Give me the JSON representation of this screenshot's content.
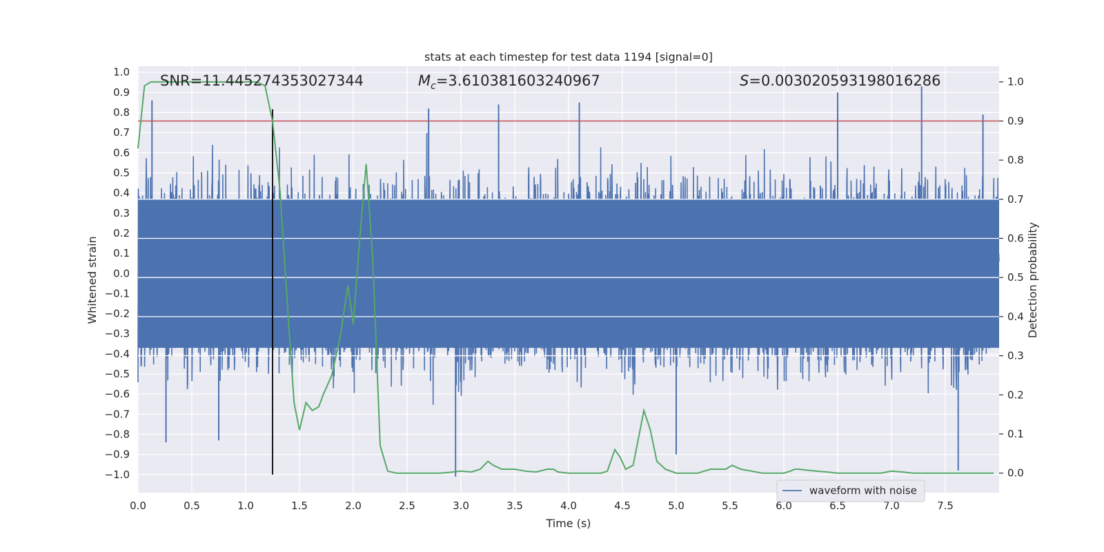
{
  "chart_data": {
    "type": "line",
    "title": "stats at each timestep for test data 1194 [signal=0]",
    "xlabel": "Time (s)",
    "ylabel_left": "Whitened strain",
    "ylabel_right": "Detection probability",
    "xlim": [
      0.0,
      8.0
    ],
    "ylim_left": [
      -1.09,
      1.03
    ],
    "ylim_right": [
      -0.05,
      1.04
    ],
    "x_ticks": [
      "0.0",
      "0.5",
      "1.0",
      "1.5",
      "2.0",
      "2.5",
      "3.0",
      "3.5",
      "4.0",
      "4.5",
      "5.0",
      "5.5",
      "6.0",
      "6.5",
      "7.0",
      "7.5"
    ],
    "x_tick_values": [
      0.0,
      0.5,
      1.0,
      1.5,
      2.0,
      2.5,
      3.0,
      3.5,
      4.0,
      4.5,
      5.0,
      5.5,
      6.0,
      6.5,
      7.0,
      7.5
    ],
    "y_left_ticks": [
      "1.0",
      "0.9",
      "0.8",
      "0.7",
      "0.6",
      "0.5",
      "0.4",
      "0.3",
      "0.2",
      "0.1",
      "0.0",
      "−0.1",
      "−0.2",
      "−0.3",
      "−0.4",
      "−0.5",
      "−0.6",
      "−0.7",
      "−0.8",
      "−0.9",
      "−1.0"
    ],
    "y_left_tick_values": [
      1.0,
      0.9,
      0.8,
      0.7,
      0.6,
      0.5,
      0.4,
      0.3,
      0.2,
      0.1,
      0.0,
      -0.1,
      -0.2,
      -0.3,
      -0.4,
      -0.5,
      -0.6,
      -0.7,
      -0.8,
      -0.9,
      -1.0
    ],
    "y_right_ticks": [
      "1.0",
      "0.9",
      "0.8",
      "0.7",
      "0.6",
      "0.5",
      "0.4",
      "0.3",
      "0.2",
      "0.1",
      "0.0"
    ],
    "y_right_tick_values": [
      1.0,
      0.9,
      0.8,
      0.7,
      0.6,
      0.5,
      0.4,
      0.3,
      0.2,
      0.1,
      0.0
    ],
    "annotations": {
      "snr": "SNR=11.445274353027344",
      "mc_symbol": "M",
      "mc_sub": "c",
      "mc_value": "=3.610381603240967",
      "s_symbol": "S",
      "s_value": "=0.003020593198016286"
    },
    "threshold": {
      "value": 0.9,
      "axis": "right",
      "color": "#c44e52"
    },
    "marker_line": {
      "x": 1.25,
      "y_range": [
        -1.0,
        0.93
      ],
      "color": "#000000"
    },
    "waveform": {
      "name": "waveform with noise",
      "color": "#4c72b0",
      "sample_rate": 2048,
      "typical_envelope": [
        -0.45,
        0.45
      ],
      "peak_spikes": [
        {
          "x": 0.13,
          "y": 0.86
        },
        {
          "x": 0.26,
          "y": -0.84
        },
        {
          "x": 0.75,
          "y": -0.83
        },
        {
          "x": 2.7,
          "y": 0.82
        },
        {
          "x": 2.95,
          "y": -1.01
        },
        {
          "x": 3.35,
          "y": 0.84
        },
        {
          "x": 4.1,
          "y": 0.85
        },
        {
          "x": 5.0,
          "y": -0.9
        },
        {
          "x": 6.5,
          "y": 0.9
        },
        {
          "x": 7.28,
          "y": 0.93
        },
        {
          "x": 7.62,
          "y": -0.98
        },
        {
          "x": 7.85,
          "y": 0.79
        }
      ]
    },
    "series": [
      {
        "name": "detection probability",
        "axis": "right",
        "color": "#55a868",
        "x": [
          0.0,
          0.06,
          0.12,
          0.2,
          0.3,
          0.5,
          0.7,
          0.9,
          1.0,
          1.1,
          1.18,
          1.25,
          1.32,
          1.4,
          1.45,
          1.5,
          1.56,
          1.62,
          1.68,
          1.72,
          1.8,
          1.88,
          1.95,
          2.0,
          2.06,
          2.12,
          2.18,
          2.25,
          2.32,
          2.4,
          2.5,
          2.6,
          2.7,
          2.8,
          2.9,
          3.0,
          3.1,
          3.18,
          3.25,
          3.3,
          3.38,
          3.5,
          3.6,
          3.7,
          3.8,
          3.86,
          3.9,
          4.0,
          4.1,
          4.2,
          4.3,
          4.36,
          4.43,
          4.48,
          4.53,
          4.6,
          4.7,
          4.76,
          4.82,
          4.9,
          5.0,
          5.1,
          5.2,
          5.26,
          5.32,
          5.4,
          5.46,
          5.52,
          5.6,
          5.7,
          5.8,
          5.9,
          6.0,
          6.06,
          6.1,
          6.14,
          6.2,
          6.3,
          6.4,
          6.5,
          6.6,
          6.7,
          6.8,
          6.9,
          7.0,
          7.1,
          7.2,
          7.3,
          7.4,
          7.5,
          7.6,
          7.7,
          7.8,
          7.9,
          7.95
        ],
        "y": [
          0.83,
          0.99,
          1.0,
          1.0,
          1.0,
          1.0,
          1.0,
          1.0,
          1.0,
          1.0,
          0.99,
          0.9,
          0.72,
          0.38,
          0.18,
          0.11,
          0.18,
          0.16,
          0.17,
          0.2,
          0.25,
          0.35,
          0.48,
          0.38,
          0.6,
          0.79,
          0.55,
          0.07,
          0.005,
          0.0,
          0.0,
          0.0,
          0.0,
          0.0,
          0.002,
          0.005,
          0.003,
          0.01,
          0.03,
          0.02,
          0.01,
          0.01,
          0.005,
          0.003,
          0.01,
          0.01,
          0.003,
          0.0,
          0.0,
          0.0,
          0.0,
          0.005,
          0.06,
          0.04,
          0.01,
          0.02,
          0.16,
          0.11,
          0.03,
          0.01,
          0.0,
          0.0,
          0.0,
          0.005,
          0.01,
          0.01,
          0.01,
          0.02,
          0.01,
          0.005,
          0.0,
          0.0,
          0.0,
          0.005,
          0.01,
          0.01,
          0.008,
          0.005,
          0.003,
          0.0,
          0.0,
          0.0,
          0.0,
          0.0,
          0.005,
          0.003,
          0.0,
          0.0,
          0.0,
          0.0,
          0.0,
          0.0,
          0.0,
          0.0,
          0.0
        ]
      }
    ],
    "legend": {
      "position": "lower-right",
      "entries": [
        "waveform with noise"
      ]
    },
    "grid": true
  }
}
